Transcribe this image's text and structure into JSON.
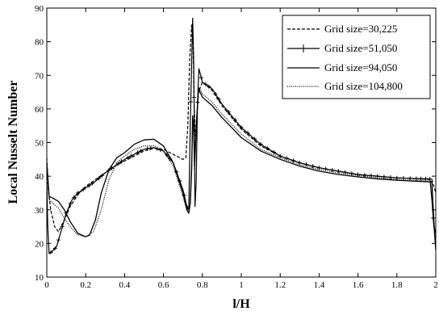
{
  "chart_data": {
    "type": "line",
    "title": "",
    "xlabel": "l/H",
    "ylabel": "Local Nusselt Number",
    "xlim": [
      0,
      2
    ],
    "ylim": [
      10,
      90
    ],
    "xticks": [
      0,
      0.2,
      0.4,
      0.6,
      0.8,
      1,
      1.2,
      1.4,
      1.6,
      1.8,
      2
    ],
    "xtick_labels": [
      "0",
      "0.2",
      "0.4",
      "0.6",
      "0.8",
      "1",
      "1.2",
      "1.4",
      "1.6",
      "1.8",
      "2"
    ],
    "yticks": [
      10,
      20,
      30,
      40,
      50,
      60,
      70,
      80,
      90
    ],
    "ytick_labels": [
      "10",
      "20",
      "30",
      "40",
      "50",
      "60",
      "70",
      "80",
      "90"
    ],
    "grid": false,
    "legend_position": "top-right",
    "series": [
      {
        "name": "Grid size=30,225",
        "style": "dashed",
        "points": [
          [
            0,
            45.5
          ],
          [
            0.008,
            36
          ],
          [
            0.02,
            30
          ],
          [
            0.04,
            25
          ],
          [
            0.06,
            23.5
          ],
          [
            0.09,
            27
          ],
          [
            0.12,
            31
          ],
          [
            0.16,
            34.5
          ],
          [
            0.2,
            37
          ],
          [
            0.25,
            39
          ],
          [
            0.3,
            41
          ],
          [
            0.35,
            43
          ],
          [
            0.4,
            44.5
          ],
          [
            0.45,
            46
          ],
          [
            0.5,
            47.5
          ],
          [
            0.55,
            48.3
          ],
          [
            0.6,
            48
          ],
          [
            0.65,
            46.5
          ],
          [
            0.7,
            45
          ],
          [
            0.715,
            45.5
          ],
          [
            0.725,
            55
          ],
          [
            0.735,
            75
          ],
          [
            0.745,
            85
          ],
          [
            0.752,
            80
          ],
          [
            0.758,
            60
          ],
          [
            0.765,
            52
          ],
          [
            0.78,
            65
          ],
          [
            0.8,
            68
          ],
          [
            0.85,
            65.5
          ],
          [
            0.9,
            61
          ],
          [
            1,
            54
          ],
          [
            1.1,
            49
          ],
          [
            1.2,
            46
          ],
          [
            1.3,
            44
          ],
          [
            1.4,
            42.5
          ],
          [
            1.5,
            41.5
          ],
          [
            1.6,
            40.5
          ],
          [
            1.7,
            40
          ],
          [
            1.8,
            39.5
          ],
          [
            1.9,
            39.2
          ],
          [
            1.98,
            39
          ],
          [
            1.99,
            37
          ],
          [
            2,
            35
          ]
        ]
      },
      {
        "name": "Grid size=51,050",
        "style": "solid-with-plus-markers",
        "points": [
          [
            0,
            38
          ],
          [
            0.005,
            25
          ],
          [
            0.012,
            17
          ],
          [
            0.025,
            17.5
          ],
          [
            0.05,
            19
          ],
          [
            0.08,
            25
          ],
          [
            0.1,
            29
          ],
          [
            0.13,
            33
          ],
          [
            0.16,
            35
          ],
          [
            0.2,
            36.5
          ],
          [
            0.25,
            38.5
          ],
          [
            0.3,
            41
          ],
          [
            0.35,
            43
          ],
          [
            0.4,
            45
          ],
          [
            0.45,
            46.5
          ],
          [
            0.5,
            48
          ],
          [
            0.55,
            48.5
          ],
          [
            0.6,
            47.5
          ],
          [
            0.65,
            44
          ],
          [
            0.7,
            36
          ],
          [
            0.72,
            31
          ],
          [
            0.73,
            30
          ],
          [
            0.738,
            56
          ],
          [
            0.745,
            74
          ],
          [
            0.75,
            87
          ],
          [
            0.755,
            75
          ],
          [
            0.758,
            58
          ],
          [
            0.762,
            31
          ],
          [
            0.768,
            38
          ],
          [
            0.775,
            62
          ],
          [
            0.782,
            72
          ],
          [
            0.8,
            68
          ],
          [
            0.85,
            66
          ],
          [
            0.9,
            61.5
          ],
          [
            1,
            54.5
          ],
          [
            1.1,
            49.5
          ],
          [
            1.2,
            46
          ],
          [
            1.3,
            44
          ],
          [
            1.4,
            42.5
          ],
          [
            1.5,
            41.5
          ],
          [
            1.6,
            40.5
          ],
          [
            1.7,
            40
          ],
          [
            1.8,
            39.5
          ],
          [
            1.9,
            39.3
          ],
          [
            1.97,
            39.2
          ],
          [
            1.98,
            33
          ],
          [
            1.99,
            25
          ],
          [
            2,
            23
          ]
        ]
      },
      {
        "name": "Grid size=94,050",
        "style": "solid",
        "points": [
          [
            0,
            44
          ],
          [
            0.005,
            40
          ],
          [
            0.012,
            34
          ],
          [
            0.03,
            33.5
          ],
          [
            0.06,
            32.5
          ],
          [
            0.09,
            30
          ],
          [
            0.12,
            26.5
          ],
          [
            0.16,
            23
          ],
          [
            0.2,
            22
          ],
          [
            0.22,
            22.5
          ],
          [
            0.25,
            27
          ],
          [
            0.28,
            35
          ],
          [
            0.32,
            42
          ],
          [
            0.36,
            45.5
          ],
          [
            0.4,
            47
          ],
          [
            0.45,
            49.5
          ],
          [
            0.5,
            50.8
          ],
          [
            0.55,
            51
          ],
          [
            0.6,
            49
          ],
          [
            0.65,
            44
          ],
          [
            0.7,
            35
          ],
          [
            0.72,
            30
          ],
          [
            0.73,
            29
          ],
          [
            0.738,
            32
          ],
          [
            0.745,
            42
          ],
          [
            0.75,
            58
          ],
          [
            0.755,
            55
          ],
          [
            0.76,
            43
          ],
          [
            0.77,
            56
          ],
          [
            0.78,
            66
          ],
          [
            0.8,
            63.5
          ],
          [
            0.85,
            61
          ],
          [
            0.9,
            57.5
          ],
          [
            1,
            51.5
          ],
          [
            1.1,
            47.5
          ],
          [
            1.2,
            45
          ],
          [
            1.3,
            43
          ],
          [
            1.4,
            41.5
          ],
          [
            1.5,
            40.5
          ],
          [
            1.6,
            39.8
          ],
          [
            1.7,
            39.2
          ],
          [
            1.8,
            38.8
          ],
          [
            1.9,
            38.5
          ],
          [
            1.98,
            38.3
          ],
          [
            1.99,
            26
          ],
          [
            2,
            18
          ]
        ]
      },
      {
        "name": "Grid size=104,800",
        "style": "dotted",
        "points": [
          [
            0,
            42
          ],
          [
            0.005,
            38
          ],
          [
            0.012,
            33
          ],
          [
            0.03,
            32
          ],
          [
            0.06,
            30.5
          ],
          [
            0.09,
            27.5
          ],
          [
            0.12,
            25
          ],
          [
            0.16,
            22.5
          ],
          [
            0.2,
            22
          ],
          [
            0.24,
            23.5
          ],
          [
            0.28,
            30
          ],
          [
            0.32,
            39
          ],
          [
            0.36,
            44
          ],
          [
            0.4,
            46
          ],
          [
            0.45,
            48
          ],
          [
            0.5,
            49
          ],
          [
            0.55,
            49
          ],
          [
            0.6,
            47.5
          ],
          [
            0.65,
            43
          ],
          [
            0.7,
            34
          ],
          [
            0.72,
            30
          ],
          [
            0.73,
            29
          ],
          [
            0.738,
            35
          ],
          [
            0.745,
            45
          ],
          [
            0.75,
            56
          ],
          [
            0.755,
            52
          ],
          [
            0.76,
            42
          ],
          [
            0.77,
            57
          ],
          [
            0.78,
            66.5
          ],
          [
            0.8,
            64.5
          ],
          [
            0.85,
            62
          ],
          [
            0.9,
            58.5
          ],
          [
            1,
            52.5
          ],
          [
            1.1,
            48
          ],
          [
            1.2,
            45.5
          ],
          [
            1.3,
            43.5
          ],
          [
            1.4,
            42
          ],
          [
            1.5,
            41
          ],
          [
            1.6,
            40.2
          ],
          [
            1.7,
            39.6
          ],
          [
            1.8,
            39
          ],
          [
            1.9,
            38.7
          ],
          [
            1.98,
            38.5
          ],
          [
            1.99,
            28
          ],
          [
            2,
            20
          ]
        ]
      }
    ]
  }
}
